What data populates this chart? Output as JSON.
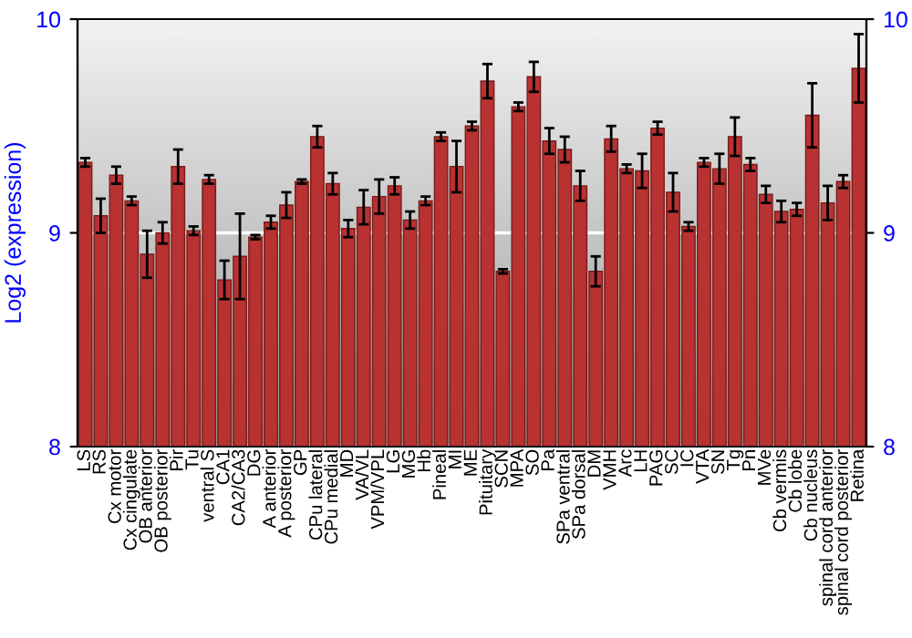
{
  "chart_data": {
    "type": "bar",
    "ylabel": "Log2 (expression)",
    "categories": [
      "LS",
      "RS",
      "Cx motor",
      "Cx cingulate",
      "OB anterior",
      "OB posterior",
      "Pir",
      "Tu",
      "ventral S",
      "CA1",
      "CA2/CA3",
      "DG",
      "A anterior",
      "A posterior",
      "GP",
      "CPu lateral",
      "CPu medial",
      "MD",
      "VA/VL",
      "VPM/VPL",
      "LG",
      "MG",
      "Hb",
      "Pineal",
      "MI",
      "ME",
      "Pituitary",
      "SCN",
      "MPA",
      "SO",
      "Pa",
      "SPa ventral",
      "SPa dorsal",
      "DM",
      "VMH",
      "Arc",
      "LH",
      "PAG",
      "SC",
      "IC",
      "VTA",
      "SN",
      "Tg",
      "Pn",
      "MVe",
      "Cb vermis",
      "Cb lobe",
      "Cb nucleus",
      "spinal cord anterior",
      "spinal cord posterior",
      "Retina"
    ],
    "values": [
      9.33,
      9.08,
      9.27,
      9.15,
      8.9,
      9.0,
      9.31,
      9.01,
      9.25,
      8.78,
      8.89,
      8.98,
      9.05,
      9.13,
      9.24,
      9.45,
      9.23,
      9.02,
      9.12,
      9.17,
      9.22,
      9.06,
      9.15,
      9.45,
      9.31,
      9.5,
      9.71,
      8.82,
      9.59,
      9.73,
      9.43,
      9.39,
      9.22,
      8.82,
      9.44,
      9.3,
      9.29,
      9.49,
      9.19,
      9.03,
      9.33,
      9.3,
      9.45,
      9.32,
      9.18,
      9.1,
      9.11,
      9.55,
      9.14,
      9.24,
      9.77
    ],
    "errors": [
      0.02,
      0.08,
      0.04,
      0.02,
      0.11,
      0.05,
      0.08,
      0.02,
      0.02,
      0.09,
      0.2,
      0.01,
      0.03,
      0.06,
      0.01,
      0.05,
      0.05,
      0.04,
      0.08,
      0.08,
      0.04,
      0.04,
      0.02,
      0.02,
      0.12,
      0.02,
      0.08,
      0.01,
      0.02,
      0.07,
      0.06,
      0.06,
      0.07,
      0.07,
      0.06,
      0.02,
      0.08,
      0.03,
      0.09,
      0.02,
      0.02,
      0.07,
      0.09,
      0.03,
      0.04,
      0.05,
      0.03,
      0.15,
      0.08,
      0.03,
      0.16
    ],
    "color": "#b83232",
    "ylim": [
      8,
      10
    ],
    "yticks": [
      8,
      9,
      10
    ],
    "y2lim": [
      8,
      10
    ],
    "y2ticks": [
      8,
      9,
      10
    ],
    "grid": "y"
  }
}
